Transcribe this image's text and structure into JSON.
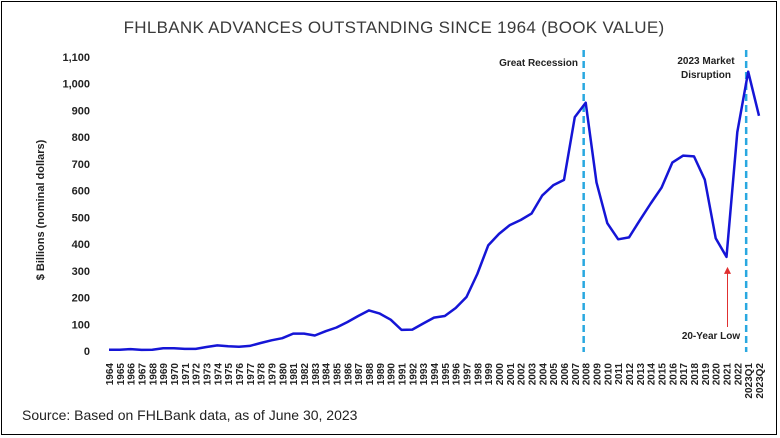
{
  "chart_data": {
    "type": "line",
    "title": "FHLBANK ADVANCES OUTSTANDING SINCE 1964 (BOOK VALUE)",
    "xlabel": "",
    "ylabel": "$ Billions (nominal dollars)",
    "ylim": [
      0,
      1100
    ],
    "yticks": [
      "0",
      "100",
      "200",
      "300",
      "400",
      "500",
      "600",
      "700",
      "800",
      "900",
      "1,000",
      "1,100"
    ],
    "grid": false,
    "legend": "none",
    "line_color": "#1515d6",
    "marker_line_color": "#29a8e0",
    "arrow_color": "#e03030",
    "categories": [
      "1964",
      "1965",
      "1966",
      "1967",
      "1968",
      "1969",
      "1970",
      "1971",
      "1972",
      "1973",
      "1974",
      "1975",
      "1976",
      "1977",
      "1978",
      "1979",
      "1980",
      "1981",
      "1982",
      "1983",
      "1984",
      "1985",
      "1986",
      "1987",
      "1988",
      "1989",
      "1990",
      "1991",
      "1992",
      "1993",
      "1994",
      "1995",
      "1996",
      "1997",
      "1998",
      "1999",
      "2000",
      "2001",
      "2002",
      "2003",
      "2004",
      "2005",
      "2006",
      "2007",
      "2008",
      "2009",
      "2010",
      "2011",
      "2012",
      "2013",
      "2014",
      "2015",
      "2016",
      "2017",
      "2018",
      "2019",
      "2020",
      "2021",
      "2022",
      "2023Q1",
      "2023Q2"
    ],
    "values": [
      5,
      5,
      7,
      4,
      5,
      10,
      10,
      8,
      8,
      15,
      21,
      18,
      16,
      19,
      30,
      40,
      48,
      65,
      65,
      58,
      74,
      88,
      108,
      131,
      152,
      140,
      117,
      79,
      80,
      103,
      125,
      131,
      161,
      202,
      288,
      395,
      438,
      471,
      490,
      514,
      582,
      620,
      640,
      875,
      929,
      631,
      478,
      418,
      425,
      489,
      552,
      611,
      705,
      731,
      728,
      641,
      422,
      352,
      819,
      1045,
      880
    ]
  },
  "annotations": {
    "great_recession": "Great Recession",
    "market_disruption_line1": "2023 Market",
    "market_disruption_line2": "Disruption",
    "low": "20-Year Low"
  },
  "source": "Source: Based on FHLBank data, as of June 30, 2023"
}
